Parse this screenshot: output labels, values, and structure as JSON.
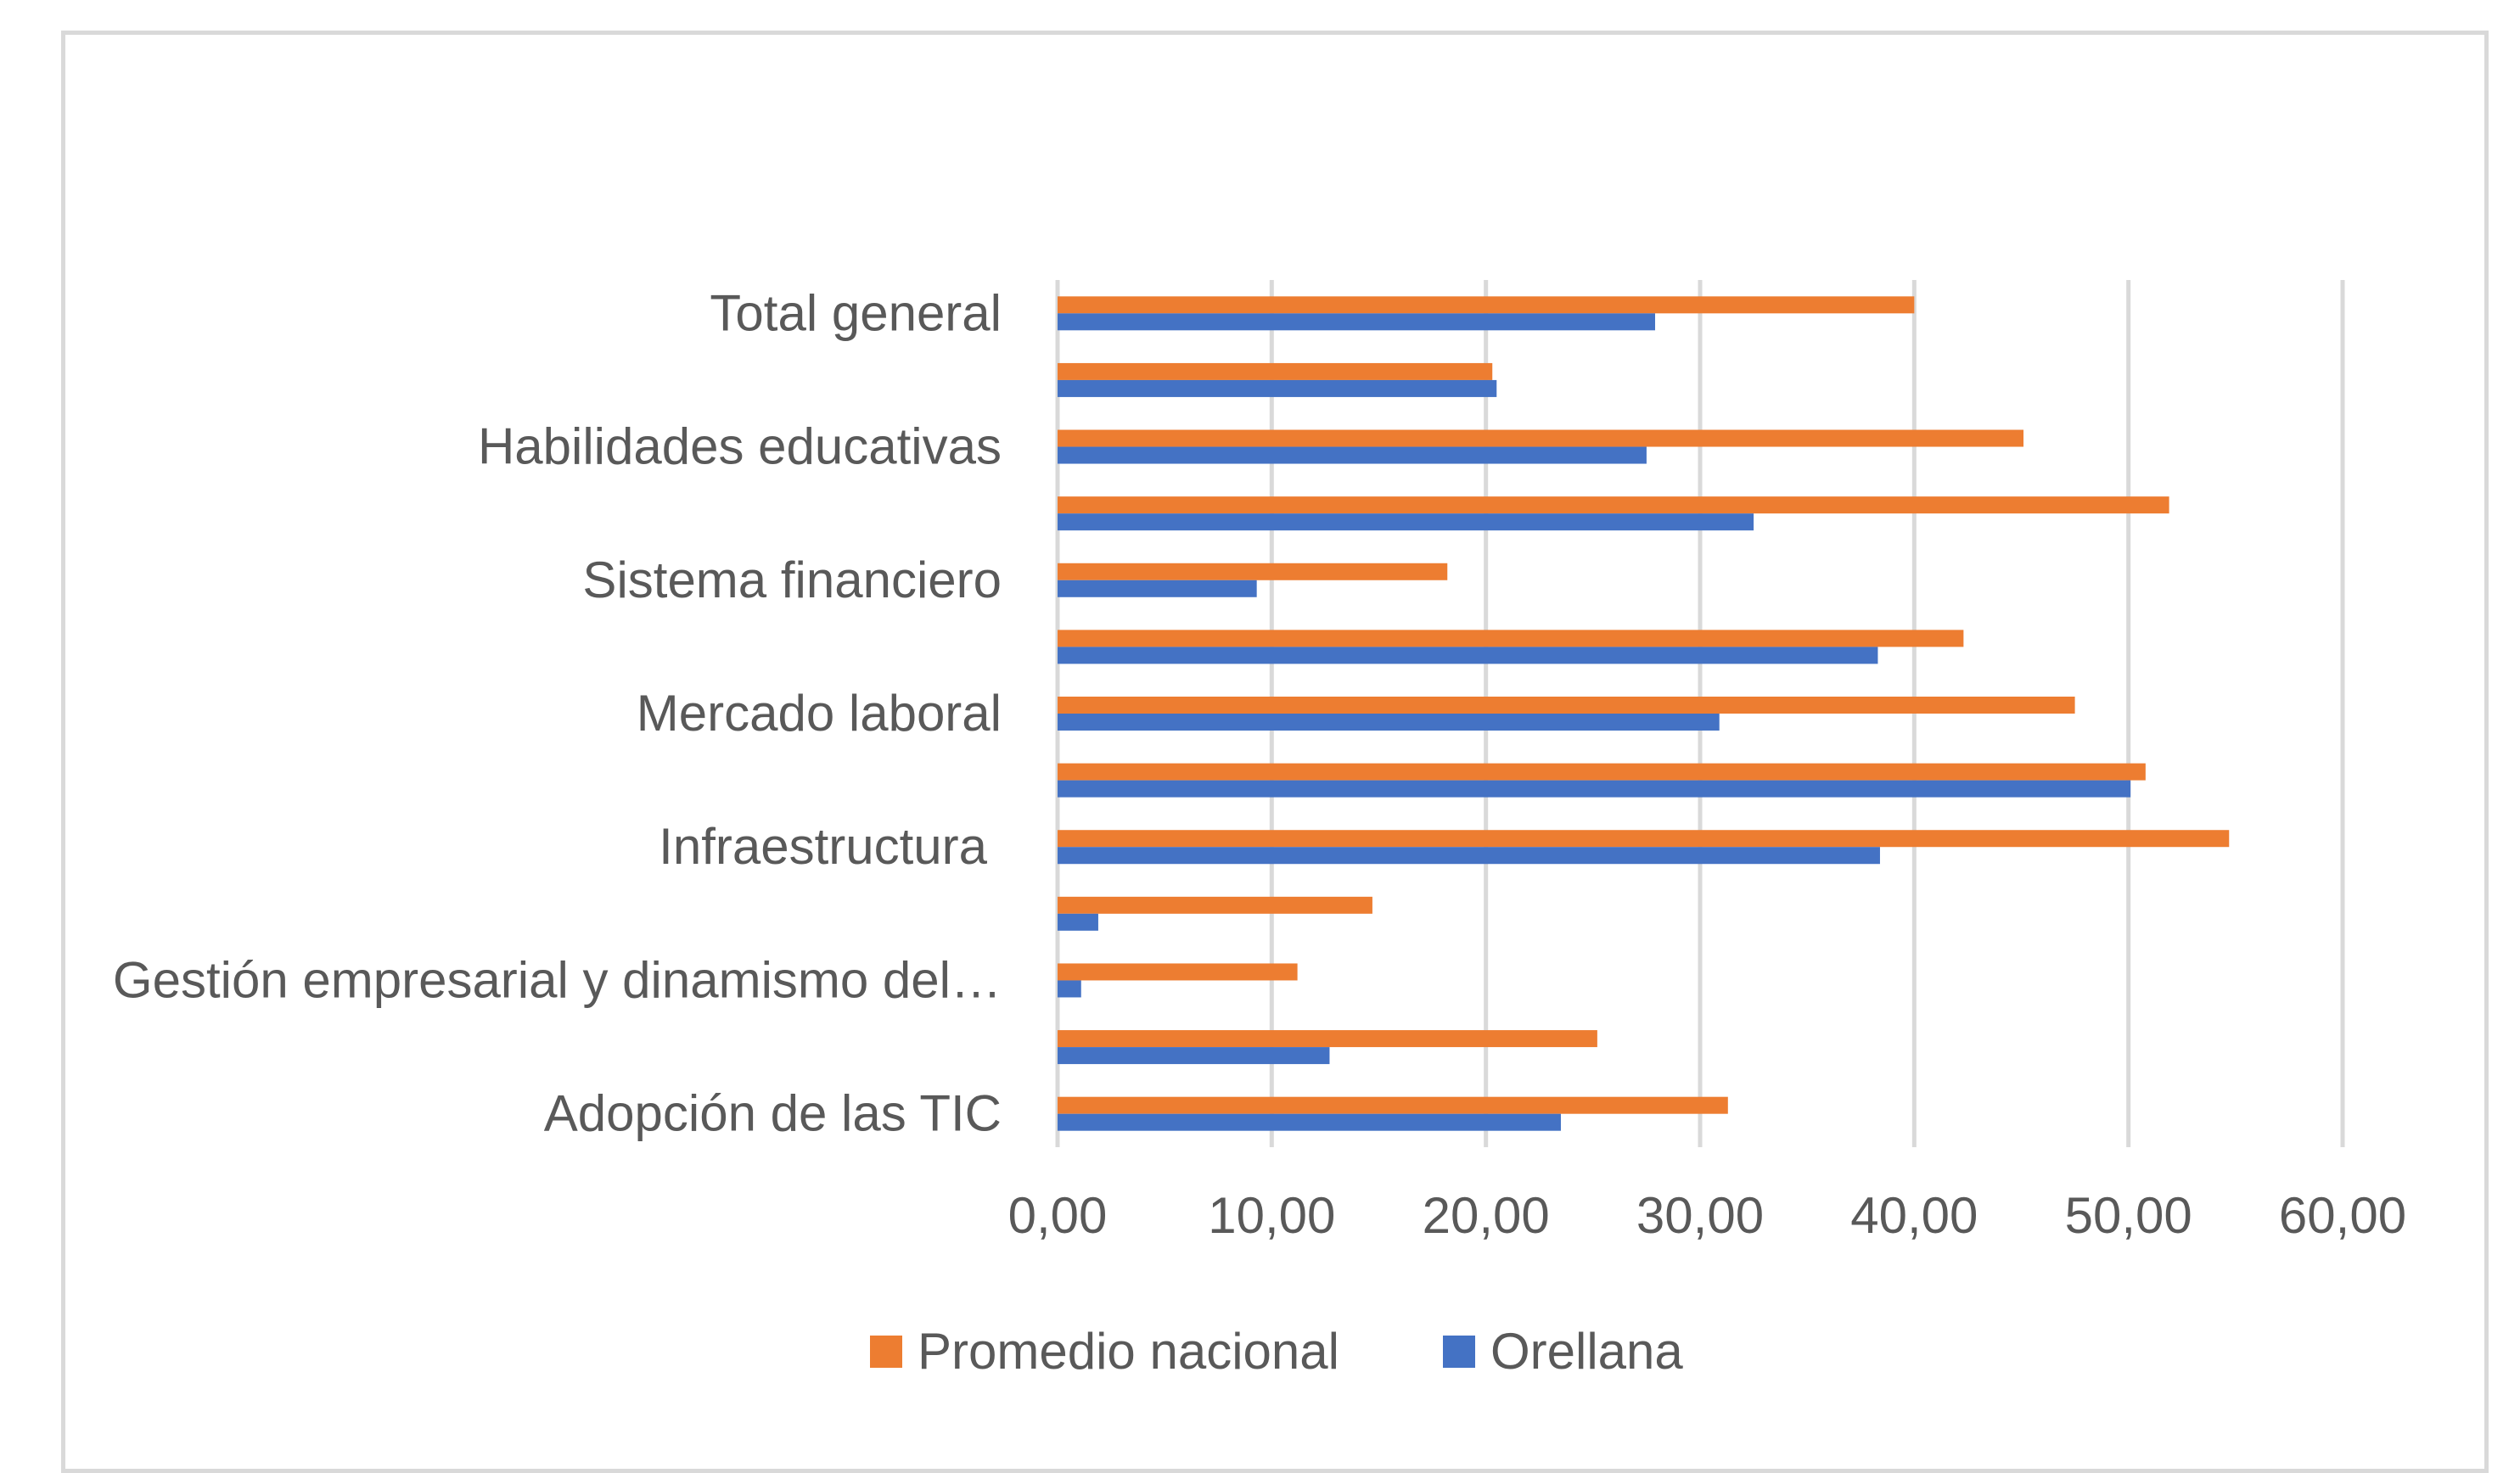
{
  "chart_data": {
    "type": "bar",
    "orientation": "horizontal",
    "title": "",
    "xlabel": "",
    "ylabel": "",
    "xlim": [
      0,
      60
    ],
    "x_ticks": [
      "0,00",
      "10,00",
      "20,00",
      "30,00",
      "40,00",
      "50,00",
      "60,00"
    ],
    "x_tick_values": [
      0,
      10,
      20,
      30,
      40,
      50,
      60
    ],
    "grid": "vertical",
    "legend_position": "bottom",
    "categories": [
      "Total general",
      "",
      "Habilidades educativas",
      "",
      "Sistema financiero",
      "",
      "Mercado laboral",
      "",
      "Infraestructura",
      "",
      "Gestión empresarial y dinamismo del…",
      "",
      "Adopción de las TIC"
    ],
    "series": [
      {
        "name": "Promedio nacional",
        "color": "#ED7D31",
        "values": [
          40.0,
          20.3,
          45.1,
          51.9,
          18.2,
          42.3,
          47.5,
          50.8,
          54.7,
          14.7,
          11.2,
          25.2,
          31.3
        ]
      },
      {
        "name": "Orellana",
        "color": "#4472C4",
        "values": [
          27.9,
          20.5,
          27.5,
          32.5,
          9.3,
          38.3,
          30.9,
          50.1,
          38.4,
          1.9,
          1.1,
          12.7,
          23.5
        ]
      }
    ]
  }
}
